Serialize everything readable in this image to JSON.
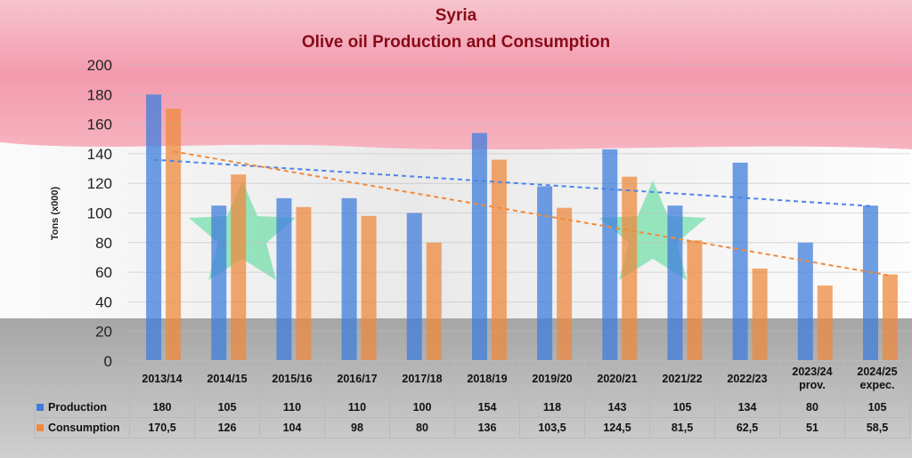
{
  "chart_data": {
    "type": "bar",
    "title": "Syria",
    "subtitle": "Olive oil Production and Consumption",
    "ylabel": "Tons (x000)",
    "ylim": [
      0,
      200
    ],
    "yticks": [
      "0",
      "20",
      "40",
      "60",
      "80",
      "100",
      "120",
      "140",
      "160",
      "180",
      "200"
    ],
    "grid": true,
    "legend": "table-bottom",
    "categories": [
      [
        "2013/14"
      ],
      [
        "2014/15"
      ],
      [
        "2015/16"
      ],
      [
        "2016/17"
      ],
      [
        "2017/18"
      ],
      [
        "2018/19"
      ],
      [
        "2019/20"
      ],
      [
        "2020/21"
      ],
      [
        "2021/22"
      ],
      [
        "2022/23"
      ],
      [
        "2023/24",
        "prov."
      ],
      [
        "2024/25",
        "expec."
      ]
    ],
    "series": [
      {
        "name": "Production",
        "color": "#3f7ddc",
        "trendline": "linear",
        "values": [
          180,
          105,
          110,
          110,
          100,
          154,
          118,
          143,
          105,
          134,
          80,
          105
        ],
        "labels": [
          "180",
          "105",
          "110",
          "110",
          "100",
          "154",
          "118",
          "143",
          "105",
          "134",
          "80",
          "105"
        ]
      },
      {
        "name": "Consumption",
        "color": "#ee8a3f",
        "trendline": "linear",
        "values": [
          170.5,
          126,
          104,
          98,
          80,
          136,
          103.5,
          124.5,
          81.5,
          62.5,
          51,
          58.5
        ],
        "labels": [
          "170,5",
          "126",
          "104",
          "98",
          "80",
          "136",
          "103,5",
          "124,5",
          "81,5",
          "62,5",
          "51",
          "58,5"
        ]
      }
    ]
  }
}
